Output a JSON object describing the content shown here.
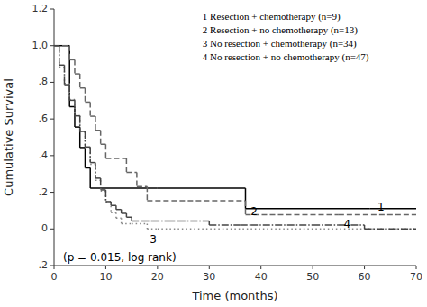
{
  "chart_data": {
    "type": "step",
    "x_label": "Time (months)",
    "y_label": "Cumulative Survival",
    "xlim": [
      0,
      70
    ],
    "ylim": [
      -0.2,
      1.2
    ],
    "xticks": [
      0,
      10,
      20,
      30,
      40,
      50,
      60,
      70
    ],
    "yticks": [
      {
        "value": -0.2,
        "label": "-.2"
      },
      0,
      {
        "value": 0.2,
        "label": ".2"
      },
      {
        "value": 0.4,
        "label": ".4"
      },
      {
        "value": 0.6,
        "label": ".6"
      },
      {
        "value": 0.8,
        "label": ".8"
      },
      {
        "value": 1.0,
        "label": "1.0"
      },
      1.2
    ],
    "grid": false,
    "legend": "upper right",
    "series": [
      {
        "name": "1 Resection + chemotherapy (n=9)",
        "color": "#000000",
        "line_style": "solid",
        "x": [
          0,
          3,
          4,
          5,
          6,
          7,
          20,
          37,
          61,
          70
        ],
        "values": [
          1.0,
          0.667,
          0.556,
          0.444,
          0.333,
          0.222,
          0.222,
          0.111,
          0.111,
          0.111
        ]
      },
      {
        "name": "2 Resection + no chemotherapy (n=13)",
        "color": "#666666",
        "line_style": "dashed",
        "x": [
          0,
          3,
          4,
          5,
          6,
          7,
          8,
          9,
          10,
          14,
          16,
          18,
          37,
          55,
          70
        ],
        "values": [
          1.0,
          0.923,
          0.846,
          0.769,
          0.692,
          0.615,
          0.538,
          0.462,
          0.385,
          0.308,
          0.231,
          0.154,
          0.077,
          0.077,
          0.077
        ]
      },
      {
        "name": "3 No resection + chemotherapy (n=34)",
        "color": "#888888",
        "line_style": "dotted",
        "x": [
          0,
          1,
          2,
          3,
          4,
          5,
          6,
          7,
          8,
          9,
          10,
          11,
          12,
          13,
          15,
          18,
          20,
          70
        ],
        "values": [
          1.0,
          0.882,
          0.794,
          0.706,
          0.618,
          0.529,
          0.441,
          0.353,
          0.265,
          0.206,
          0.147,
          0.088,
          0.059,
          0.029,
          0.029,
          0.0,
          0.0,
          0.0
        ]
      },
      {
        "name": "4 No resection + no chemotherapy (n=47)",
        "color": "#444444",
        "line_style": "dashdot",
        "x": [
          0,
          1,
          2,
          3,
          4,
          5,
          6,
          7,
          8,
          9,
          10,
          11,
          12,
          13,
          14,
          15,
          17,
          19,
          22,
          24,
          30,
          36,
          38,
          50,
          55,
          60,
          70
        ],
        "values": [
          1.0,
          0.894,
          0.787,
          0.702,
          0.617,
          0.532,
          0.447,
          0.362,
          0.277,
          0.213,
          0.149,
          0.128,
          0.106,
          0.085,
          0.064,
          0.043,
          0.043,
          0.043,
          0.043,
          0.043,
          0.021,
          0.021,
          0.021,
          0.021,
          0.021,
          0.0,
          0.0
        ]
      }
    ],
    "annotations": [
      {
        "text": "1",
        "x": 62.5,
        "y": 0.115
      },
      {
        "text": "2",
        "x": 38.0,
        "y": 0.092
      },
      {
        "text": "3",
        "x": 18.5,
        "y": -0.06
      },
      {
        "text": "4",
        "x": 56.0,
        "y": 0.025
      },
      {
        "text": "(p = 0.015, log rank)"
      }
    ]
  }
}
